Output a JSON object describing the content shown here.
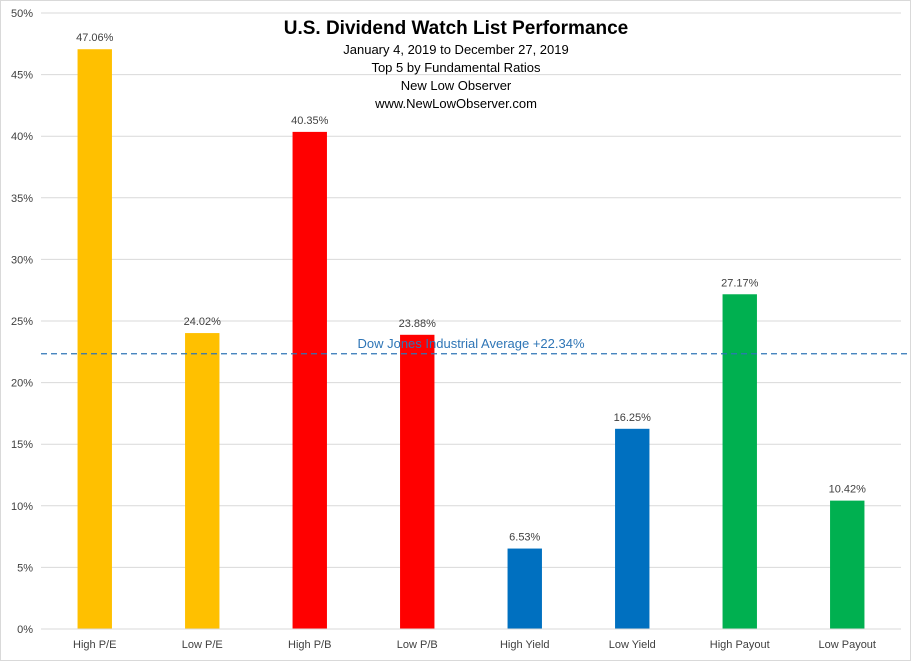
{
  "chart_data": {
    "type": "bar",
    "title": "U.S. Dividend Watch List Performance",
    "subtitles": [
      "January 4, 2019 to December 27, 2019",
      "Top 5 by Fundamental Ratios",
      "New Low Observer",
      "www.NewLowObserver.com"
    ],
    "categories": [
      "High P/E",
      "Low P/E",
      "High P/B",
      "Low P/B",
      "High Yield",
      "Low Yield",
      "High Payout",
      "Low Payout"
    ],
    "values": [
      47.06,
      24.02,
      40.35,
      23.88,
      6.53,
      16.25,
      27.17,
      10.42
    ],
    "data_labels": [
      "47.06%",
      "24.02%",
      "40.35%",
      "23.88%",
      "6.53%",
      "16.25%",
      "27.17%",
      "10.42%"
    ],
    "colors": [
      "#ffc000",
      "#ffc000",
      "#ff0000",
      "#ff0000",
      "#0070c0",
      "#0070c0",
      "#00b050",
      "#00b050"
    ],
    "ylim": [
      0,
      50
    ],
    "yticks": [
      0,
      5,
      10,
      15,
      20,
      25,
      30,
      35,
      40,
      45,
      50
    ],
    "ytick_labels": [
      "0%",
      "5%",
      "10%",
      "15%",
      "20%",
      "25%",
      "30%",
      "35%",
      "40%",
      "45%",
      "50%"
    ],
    "xlabel": "",
    "ylabel": "",
    "grid": true,
    "reference_line": {
      "value": 22.34,
      "label": "Dow Jones Industrial Average +22.34%",
      "color": "#2e75b6"
    }
  }
}
